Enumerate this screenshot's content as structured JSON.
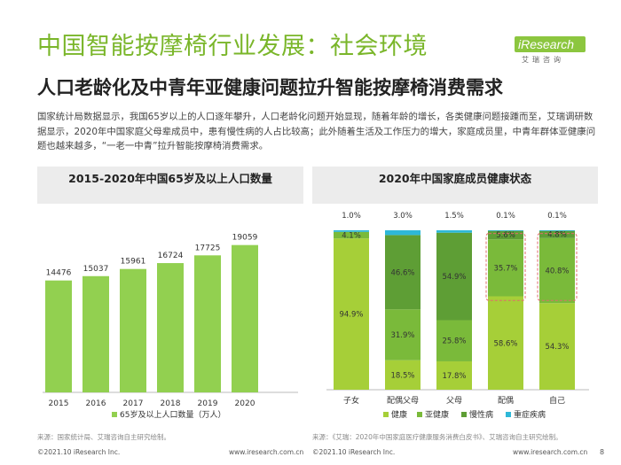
{
  "header": {
    "title": "中国智能按摩椅行业发展：社会环境",
    "subtitle": "人口老龄化及中青年亚健康问题拉升智能按摩椅消费需求",
    "logo_text": "iResearch",
    "logo_sub": "艾瑞咨询"
  },
  "intro": "国家统计局数据显示，我国65岁以上的人口逐年攀升，人口老龄化问题开始显现，随着年龄的增长，各类健康问题接踵而至，艾瑞调研数据显示，2020年中国家庭父母辈成员中，患有慢性病的人占比较高；此外随着生活及工作压力的增大，家庭成员里，中青年群体亚健康问题也越来越多，“一老一中青”拉升智能按摩椅消费需求。",
  "chart_data": [
    {
      "type": "bar",
      "title": "2015-2020年中国65岁及以上人口数量",
      "categories": [
        "2015",
        "2016",
        "2017",
        "2018",
        "2019",
        "2020"
      ],
      "values": [
        14476,
        15037,
        15961,
        16724,
        17725,
        19059
      ],
      "legend": "65岁及以上人口数量（万人）",
      "ylim": [
        0,
        22000
      ],
      "color": "#92d050",
      "xlabel": "",
      "ylabel": ""
    },
    {
      "type": "stacked_bar",
      "title": "2020年中国家庭成员健康状态",
      "categories": [
        "子女",
        "配偶父母",
        "父母",
        "配偶",
        "自己"
      ],
      "series": [
        {
          "name": "健康",
          "color": "#a6cf38",
          "values": [
            94.9,
            18.5,
            17.8,
            58.6,
            54.3
          ],
          "labels": [
            "94.9%",
            "18.5%",
            "17.8%",
            "58.6%",
            "54.3%"
          ]
        },
        {
          "name": "亚健康",
          "color": "#7aba3a",
          "values": [
            4.1,
            31.9,
            25.8,
            35.7,
            40.8
          ],
          "labels": [
            "4.1%",
            "31.9%",
            "25.8%",
            "35.7%",
            "40.8%"
          ]
        },
        {
          "name": "慢性病",
          "color": "#5e9e35",
          "values": [
            0.0,
            46.6,
            54.9,
            5.6,
            4.8
          ],
          "labels": [
            "",
            "46.6%",
            "54.9%",
            "5.6%",
            "4.8%"
          ]
        },
        {
          "name": "重症疾病",
          "color": "#2eb8d8",
          "values": [
            1.0,
            3.0,
            1.5,
            0.1,
            0.1
          ],
          "labels": [
            "1.0%",
            "3.0%",
            "1.5%",
            "0.1%",
            "0.1%"
          ]
        }
      ],
      "highlighted_categories": [
        "配偶",
        "自己"
      ],
      "ylim": [
        0,
        100
      ]
    }
  ],
  "sources": {
    "left": "来源：国家统计局、艾瑞咨询自主研究绘制。",
    "right": "来源：《艾瑞：2020年中国家庭医疗健康服务消费白皮书》、艾瑞咨询自主研究绘制。"
  },
  "footer": {
    "copyright_left": "©2021.10 iResearch Inc.",
    "site_left": "www.iresearch.com.cn",
    "copyright_right": "©2021.10 iResearch Inc.",
    "site_right": "www.iresearch.com.cn",
    "page": "8"
  }
}
